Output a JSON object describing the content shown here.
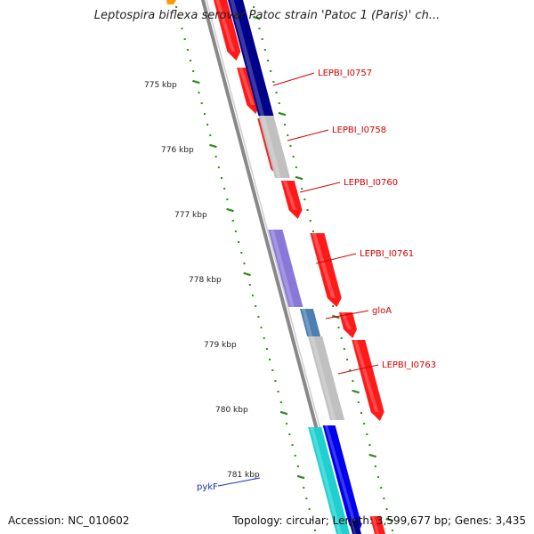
{
  "title": "Leptospira biflexa serovar Patoc strain 'Patoc 1 (Paris)' ch...",
  "footer": {
    "accession": "Accession: NC_010602",
    "summary": "Topology: circular; Length: 3,599,677 bp; Genes: 3,435"
  },
  "axis_labels": [
    "775 kbp",
    "776 kbp",
    "777 kbp",
    "778 kbp",
    "779 kbp",
    "780 kbp",
    "781 kbp"
  ],
  "gene_labels": [
    {
      "text": "LEPBI_I0757",
      "color": "#d40000"
    },
    {
      "text": "LEPBI_I0758",
      "color": "#d40000"
    },
    {
      "text": "LEPBI_I0760",
      "color": "#d40000"
    },
    {
      "text": "LEPBI_I0761",
      "color": "#d40000"
    },
    {
      "text": "gloA",
      "color": "#d40000"
    },
    {
      "text": "LEPBI_I0763",
      "color": "#d40000"
    },
    {
      "text": "pykF",
      "color": "#1a2fb5"
    }
  ],
  "colors": {
    "cds": "#ff1a1a",
    "cog_navy": "#000088",
    "cog_gray": "#c0c0c0",
    "cog_purple": "#8a78d8",
    "cog_steel": "#4d7fb3",
    "cog_cyan": "#1fd0d0",
    "cog_blue": "#0000ee",
    "tick": "#2e8b1e",
    "backbone": "#888888"
  }
}
